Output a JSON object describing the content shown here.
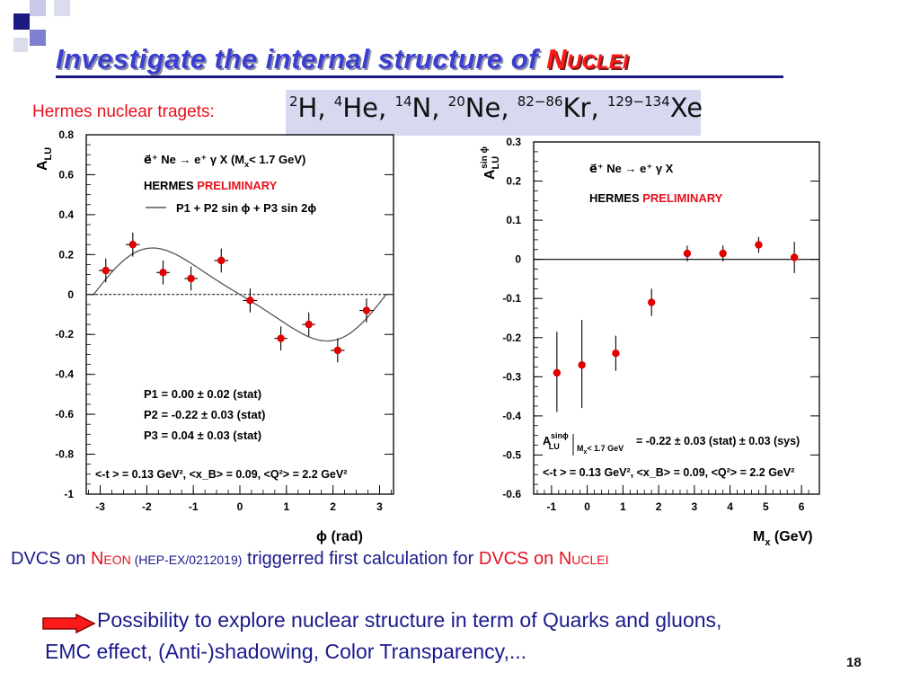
{
  "slide": {
    "title_main": "Investigate the internal structure of ",
    "title_nuclei": "Nuclei",
    "nuclear_label": "Hermes nuclear tragets:",
    "nuclei": [
      {
        "mass": "2",
        "sym": "H"
      },
      {
        "mass": "4",
        "sym": "He"
      },
      {
        "mass": "14",
        "sym": "N"
      },
      {
        "mass": "20",
        "sym": "Ne"
      },
      {
        "mass": "82−86",
        "sym": "Kr"
      },
      {
        "mass": "129−134",
        "sym": "Xe"
      }
    ],
    "dvcs_on": "DVCS on ",
    "neon": "Neon",
    "hep_ref": " (HEP-EX/0212019)",
    "triggered": " triggerred first calculation for ",
    "dvcs_on_nuclei": "DVCS on ",
    "nuclei_word": "Nuclei",
    "possibility_line1": "Possibility to explore nuclear structure in term of Quarks and gluons,",
    "possibility_line2": "EMC effect, (Anti-)shadowing, Color Transparency,...",
    "page_number": "18"
  },
  "colors": {
    "title_blue": "#3a3fd0",
    "accent_red": "#e8101e",
    "text_blue": "#1a1a8c",
    "marker_red": "#e00000",
    "fit_curve": "#555555"
  },
  "chart_data": [
    {
      "type": "scatter",
      "ylabel": "A",
      "ylabel_sub": "LU",
      "xlabel": "ϕ (rad)",
      "xlim": [
        -3.3,
        3.3
      ],
      "ylim": [
        -1.0,
        0.8
      ],
      "xticks": [
        "-3",
        "-2",
        "-1",
        "0",
        "1",
        "2",
        "3"
      ],
      "yticks": [
        "0.8",
        "0.6",
        "0.4",
        "0.2",
        "0",
        "-0.2",
        "-0.4",
        "-0.6",
        "-0.8",
        "-1"
      ],
      "legend": {
        "reaction": "e⃗⁺ Ne → e⁺ γ X    (M",
        "reaction_sub": "x",
        "reaction_end": "< 1.7 GeV)",
        "hermes": "HERMES",
        "preliminary": "PRELIMINARY",
        "fit_label": "P1 + P2 sin ϕ + P3 sin 2ϕ"
      },
      "fit_params": [
        {
          "label": "P1 =  0.00 ± 0.02 (stat)",
          "value": 0.0
        },
        {
          "label": "P2 = -0.22 ± 0.03 (stat)",
          "value": -0.22
        },
        {
          "label": "P3 =  0.04 ± 0.03 (stat)",
          "value": 0.04
        }
      ],
      "kinematics": "<-t > = 0.13 GeV², <x_B> = 0.09, <Q²> = 2.2 GeV²",
      "points": [
        {
          "x": -2.88,
          "y": 0.12,
          "yerr": 0.06,
          "xerr": 0.3
        },
        {
          "x": -2.3,
          "y": 0.25,
          "yerr": 0.06,
          "xerr": 0.3
        },
        {
          "x": -1.65,
          "y": 0.11,
          "yerr": 0.06,
          "xerr": 0.28
        },
        {
          "x": -1.05,
          "y": 0.08,
          "yerr": 0.06,
          "xerr": 0.28
        },
        {
          "x": -0.4,
          "y": 0.17,
          "yerr": 0.06,
          "xerr": 0.3
        },
        {
          "x": 0.22,
          "y": -0.03,
          "yerr": 0.06,
          "xerr": 0.3
        },
        {
          "x": 0.88,
          "y": -0.22,
          "yerr": 0.06,
          "xerr": 0.28
        },
        {
          "x": 1.48,
          "y": -0.15,
          "yerr": 0.06,
          "xerr": 0.28
        },
        {
          "x": 2.1,
          "y": -0.28,
          "yerr": 0.06,
          "xerr": 0.3
        },
        {
          "x": 2.72,
          "y": -0.08,
          "yerr": 0.06,
          "xerr": 0.3
        }
      ]
    },
    {
      "type": "scatter",
      "ylabel": "A",
      "ylabel_sub": "LU",
      "ylabel_sup": "sin ϕ",
      "xlabel": "M",
      "xlabel_sub": "x",
      "xlabel_end": " (GeV)",
      "xlim": [
        -1.5,
        6.5
      ],
      "ylim": [
        -0.6,
        0.3
      ],
      "xticks": [
        "-1",
        "0",
        "1",
        "2",
        "3",
        "4",
        "5",
        "6"
      ],
      "yticks": [
        "0.3",
        "0.2",
        "0.1",
        "0",
        "-0.1",
        "-0.2",
        "-0.3",
        "-0.4",
        "-0.5",
        "-0.6"
      ],
      "legend": {
        "reaction": "e⃗⁺ Ne → e⁺ γ X",
        "hermes": "HERMES",
        "preliminary": "PRELIMINARY"
      },
      "result_sup": "sinϕ",
      "result_sub": "LU",
      "result_cut": "M",
      "result_cut_sub": "x",
      "result_cut_end": "< 1.7 GeV",
      "result_value": "= -0.22 ± 0.03 (stat) ± 0.03 (sys)",
      "kinematics": "<-t > = 0.13 GeV², <x_B> = 0.09, <Q²> = 2.2 GeV²",
      "points": [
        {
          "x": -0.85,
          "y": -0.29,
          "yerr_up": 0.105,
          "yerr_down": 0.1
        },
        {
          "x": -0.15,
          "y": -0.27,
          "yerr_up": 0.115,
          "yerr_down": 0.11
        },
        {
          "x": 0.8,
          "y": -0.24,
          "yerr_up": 0.045,
          "yerr_down": 0.045
        },
        {
          "x": 1.8,
          "y": -0.11,
          "yerr_up": 0.035,
          "yerr_down": 0.035
        },
        {
          "x": 2.8,
          "y": 0.015,
          "yerr_up": 0.02,
          "yerr_down": 0.02
        },
        {
          "x": 3.8,
          "y": 0.015,
          "yerr_up": 0.02,
          "yerr_down": 0.02
        },
        {
          "x": 4.8,
          "y": 0.037,
          "yerr_up": 0.02,
          "yerr_down": 0.02
        },
        {
          "x": 5.8,
          "y": 0.005,
          "yerr_up": 0.04,
          "yerr_down": 0.04
        }
      ]
    }
  ]
}
